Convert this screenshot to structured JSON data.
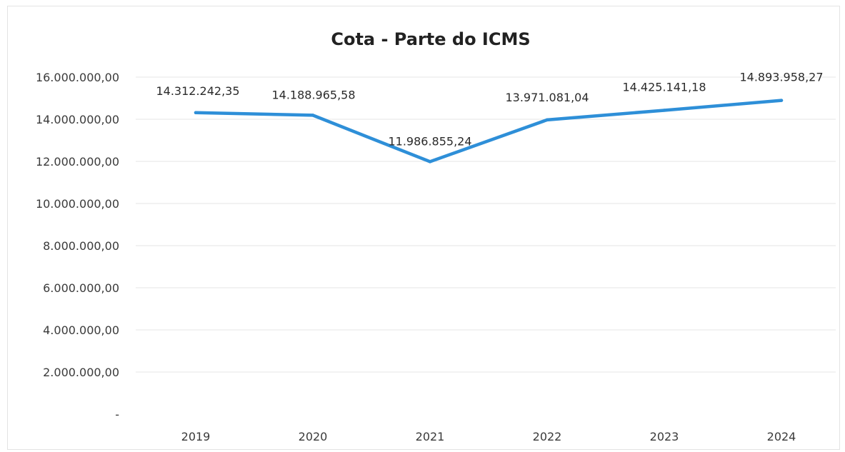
{
  "chart_data": {
    "type": "line",
    "title": "Cota - Parte do ICMS",
    "xlabel": "",
    "ylabel": "",
    "categories": [
      "2019",
      "2020",
      "2021",
      "2022",
      "2023",
      "2024"
    ],
    "series": [
      {
        "values": [
          14312242.35,
          14188965.58,
          11986855.24,
          13971081.04,
          14425141.18,
          14893958.27
        ],
        "color": "#2E8FD8"
      }
    ],
    "data_labels": [
      "14.312.242,35",
      "14.188.965,58",
      "11.986.855,24",
      "13.971.081,04",
      "14.425.141,18",
      "14.893.958,27"
    ],
    "yticks": [
      0,
      2000000,
      4000000,
      6000000,
      8000000,
      10000000,
      12000000,
      14000000,
      16000000
    ],
    "ytick_labels": [
      "-",
      "2.000.000,00",
      "4.000.000,00",
      "6.000.000,00",
      "8.000.000,00",
      "10.000.000,00",
      "12.000.000,00",
      "14.000.000,00",
      "16.000.000,00"
    ],
    "ylim": [
      0,
      16000000
    ],
    "grid": true,
    "legend": "none"
  }
}
